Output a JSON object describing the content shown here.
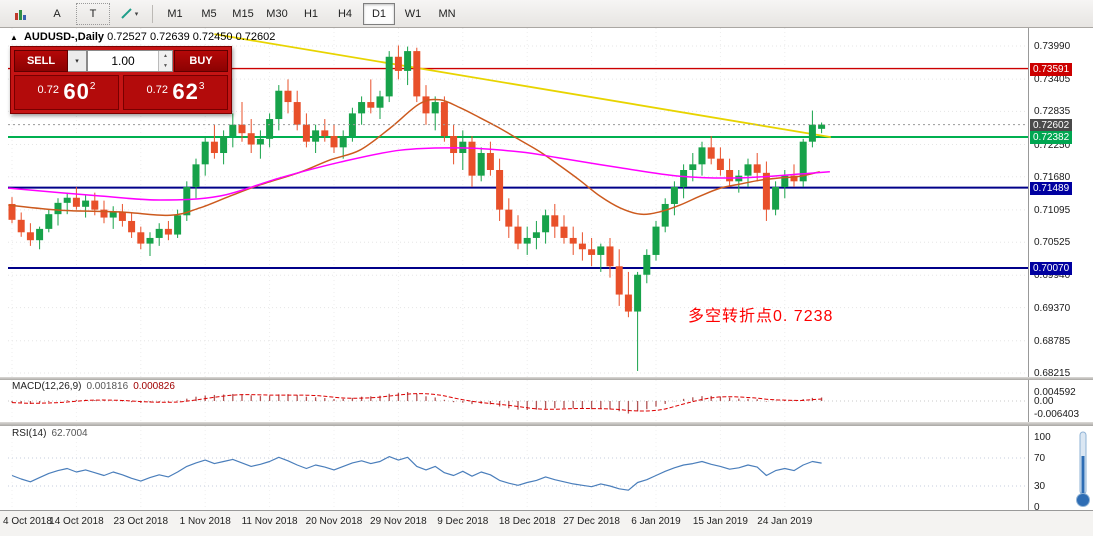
{
  "toolbar": {
    "tool_cursor": "A",
    "tool_text": "T",
    "timeframes": [
      "M1",
      "M5",
      "M15",
      "M30",
      "H1",
      "H4",
      "D1",
      "W1",
      "MN"
    ],
    "active_timeframe": "D1"
  },
  "icons": {
    "dropdown_caret": "▾",
    "spin_up": "▲",
    "spin_down": "▼",
    "chart_arrow": "▲"
  },
  "chart": {
    "title": "AUDUSD-,Daily",
    "ohlc": "0.72527 0.72639 0.72450 0.72602"
  },
  "trade_panel": {
    "sell_label": "SELL",
    "buy_label": "BUY",
    "volume": "1.00",
    "sell_price_small": "0.72",
    "sell_price_big": "60",
    "sell_price_sup": "2",
    "buy_price_small": "0.72",
    "buy_price_big": "62",
    "buy_price_sup": "3"
  },
  "annotation": {
    "text": "多空转折点0. 7238"
  },
  "price_axis": {
    "labels": [
      "0.73990",
      "0.73405",
      "0.72835",
      "0.72250",
      "0.71680",
      "0.71095",
      "0.70525",
      "0.69940",
      "0.69370",
      "0.68785",
      "0.68215"
    ],
    "tags": [
      {
        "text": "0.73591",
        "price": 0.73591,
        "color": "#cc0000"
      },
      {
        "text": "0.72602",
        "price": 0.72602,
        "color": "#4a4a4a"
      },
      {
        "text": "0.72382",
        "price": 0.72382,
        "color": "#00a651"
      },
      {
        "text": "0.71489",
        "price": 0.71489,
        "color": "#0000a0"
      },
      {
        "text": "0.70070",
        "price": 0.7007,
        "color": "#0000a0"
      }
    ]
  },
  "macd_panel": {
    "name": "MACD(12,26,9)",
    "value1": "0.001816",
    "value2": "0.000826",
    "axis": [
      "0.004592",
      "0.00",
      "-0.006403"
    ]
  },
  "rsi_panel": {
    "name": "RSI(14)",
    "value": "62.7004",
    "axis": [
      "100",
      "70",
      "30",
      "0"
    ]
  },
  "date_axis": {
    "labels": [
      "4 Oct 2018",
      "14 Oct 2018",
      "23 Oct 2018",
      "1 Nov 2018",
      "11 Nov 2018",
      "20 Nov 2018",
      "29 Nov 2018",
      "9 Dec 2018",
      "18 Dec 2018",
      "27 Dec 2018",
      "6 Jan 2019",
      "15 Jan 2019",
      "24 Jan 2019"
    ]
  },
  "chart_data": [
    {
      "type": "candlestick",
      "symbol": "AUDUSD",
      "timeframe": "Daily",
      "price_max": 0.74308,
      "price_min": 0.68144,
      "current_price": 0.72602,
      "up_color": "#17a24a",
      "down_color": "#e8502a",
      "x_tick_indices": [
        0,
        7,
        14,
        21,
        28,
        35,
        42,
        49,
        56,
        63,
        70,
        77,
        84
      ],
      "hlines": [
        {
          "price": 0.73591,
          "color": "#cc0000",
          "width": 1.4
        },
        {
          "price": 0.72382,
          "color": "#00b050",
          "width": 2
        },
        {
          "price": 0.71489,
          "color": "#000089",
          "width": 2
        },
        {
          "price": 0.7007,
          "color": "#000089",
          "width": 2
        }
      ],
      "trendline": {
        "color": "#e8d400",
        "points": [
          [
            22,
            0.742
          ],
          [
            89,
            0.7238
          ]
        ]
      },
      "ma_slow_color": "#ff00ff",
      "ma_fast_color": "#cc5a1e",
      "ma_slow": [
        [
          -0.4,
          0.7148
        ],
        [
          9.6,
          0.7134
        ],
        [
          16.1,
          0.7127
        ],
        [
          22.6,
          0.7134
        ],
        [
          29.1,
          0.7166
        ],
        [
          35.7,
          0.7194
        ],
        [
          42.2,
          0.7215
        ],
        [
          48.7,
          0.7219
        ],
        [
          55.2,
          0.7212
        ],
        [
          59.6,
          0.7201
        ],
        [
          66.1,
          0.7184
        ],
        [
          72.6,
          0.7169
        ],
        [
          79.1,
          0.7166
        ],
        [
          85.7,
          0.7173
        ],
        [
          88.9,
          0.7177
        ]
      ],
      "ma_fast": [
        [
          -0.4,
          0.7118
        ],
        [
          5.2,
          0.7109
        ],
        [
          11.7,
          0.7106
        ],
        [
          17.2,
          0.71
        ],
        [
          20.4,
          0.7113
        ],
        [
          23.7,
          0.7134
        ],
        [
          27,
          0.7154
        ],
        [
          31.3,
          0.7176
        ],
        [
          34.6,
          0.7198
        ],
        [
          37.8,
          0.7215
        ],
        [
          41.1,
          0.7254
        ],
        [
          44.3,
          0.7297
        ],
        [
          46.5,
          0.7304
        ],
        [
          48.7,
          0.729
        ],
        [
          50.9,
          0.7272
        ],
        [
          53,
          0.7254
        ],
        [
          55.2,
          0.7233
        ],
        [
          57.4,
          0.7212
        ],
        [
          59.6,
          0.7187
        ],
        [
          61.7,
          0.7162
        ],
        [
          63.9,
          0.7134
        ],
        [
          66.1,
          0.7113
        ],
        [
          68.3,
          0.7102
        ],
        [
          70.4,
          0.7106
        ],
        [
          72.6,
          0.7118
        ],
        [
          74.8,
          0.7134
        ],
        [
          77,
          0.7148
        ],
        [
          79.1,
          0.7155
        ],
        [
          81.3,
          0.7162
        ],
        [
          83.5,
          0.7166
        ],
        [
          85.7,
          0.7169
        ],
        [
          87.8,
          0.7177
        ]
      ],
      "ohlc": [
        [
          0.712,
          0.7132,
          0.7086,
          0.7092
        ],
        [
          0.7092,
          0.7105,
          0.7062,
          0.707
        ],
        [
          0.707,
          0.7086,
          0.7046,
          0.7056
        ],
        [
          0.7056,
          0.708,
          0.704,
          0.7076
        ],
        [
          0.7076,
          0.711,
          0.707,
          0.7102
        ],
        [
          0.7102,
          0.713,
          0.7082,
          0.7122
        ],
        [
          0.7122,
          0.714,
          0.7102,
          0.7131
        ],
        [
          0.7131,
          0.715,
          0.711,
          0.7115
        ],
        [
          0.7115,
          0.7136,
          0.7096,
          0.7126
        ],
        [
          0.7126,
          0.714,
          0.71,
          0.711
        ],
        [
          0.711,
          0.7126,
          0.7086,
          0.7096
        ],
        [
          0.7096,
          0.7116,
          0.7076,
          0.7106
        ],
        [
          0.7106,
          0.712,
          0.708,
          0.709
        ],
        [
          0.709,
          0.7105,
          0.706,
          0.707
        ],
        [
          0.707,
          0.708,
          0.704,
          0.705
        ],
        [
          0.705,
          0.707,
          0.7028,
          0.706
        ],
        [
          0.706,
          0.7086,
          0.7046,
          0.7076
        ],
        [
          0.7076,
          0.709,
          0.7056,
          0.7066
        ],
        [
          0.7066,
          0.711,
          0.706,
          0.71
        ],
        [
          0.71,
          0.716,
          0.709,
          0.715
        ],
        [
          0.715,
          0.72,
          0.713,
          0.719
        ],
        [
          0.719,
          0.724,
          0.717,
          0.723
        ],
        [
          0.723,
          0.726,
          0.72,
          0.721
        ],
        [
          0.721,
          0.725,
          0.719,
          0.724
        ],
        [
          0.724,
          0.728,
          0.722,
          0.726
        ],
        [
          0.726,
          0.73,
          0.723,
          0.7245
        ],
        [
          0.7245,
          0.727,
          0.721,
          0.7225
        ],
        [
          0.7225,
          0.725,
          0.72,
          0.7235
        ],
        [
          0.7235,
          0.728,
          0.722,
          0.727
        ],
        [
          0.727,
          0.733,
          0.725,
          0.732
        ],
        [
          0.732,
          0.734,
          0.728,
          0.73
        ],
        [
          0.73,
          0.732,
          0.725,
          0.726
        ],
        [
          0.726,
          0.728,
          0.722,
          0.723
        ],
        [
          0.723,
          0.726,
          0.721,
          0.725
        ],
        [
          0.725,
          0.727,
          0.723,
          0.724
        ],
        [
          0.724,
          0.726,
          0.721,
          0.722
        ],
        [
          0.722,
          0.725,
          0.72,
          0.724
        ],
        [
          0.724,
          0.729,
          0.723,
          0.728
        ],
        [
          0.728,
          0.731,
          0.726,
          0.73
        ],
        [
          0.73,
          0.734,
          0.728,
          0.729
        ],
        [
          0.729,
          0.732,
          0.727,
          0.731
        ],
        [
          0.731,
          0.739,
          0.73,
          0.738
        ],
        [
          0.738,
          0.74,
          0.734,
          0.7355
        ],
        [
          0.7355,
          0.7398,
          0.733,
          0.739
        ],
        [
          0.739,
          0.7396,
          0.73,
          0.731
        ],
        [
          0.731,
          0.733,
          0.726,
          0.728
        ],
        [
          0.728,
          0.731,
          0.725,
          0.73
        ],
        [
          0.73,
          0.731,
          0.723,
          0.724
        ],
        [
          0.724,
          0.726,
          0.719,
          0.721
        ],
        [
          0.721,
          0.725,
          0.718,
          0.723
        ],
        [
          0.723,
          0.724,
          0.715,
          0.717
        ],
        [
          0.717,
          0.722,
          0.716,
          0.721
        ],
        [
          0.721,
          0.723,
          0.717,
          0.718
        ],
        [
          0.718,
          0.72,
          0.709,
          0.711
        ],
        [
          0.711,
          0.713,
          0.706,
          0.708
        ],
        [
          0.708,
          0.71,
          0.704,
          0.705
        ],
        [
          0.705,
          0.708,
          0.703,
          0.706
        ],
        [
          0.706,
          0.709,
          0.704,
          0.707
        ],
        [
          0.707,
          0.711,
          0.705,
          0.71
        ],
        [
          0.71,
          0.712,
          0.706,
          0.708
        ],
        [
          0.708,
          0.71,
          0.705,
          0.706
        ],
        [
          0.706,
          0.708,
          0.703,
          0.705
        ],
        [
          0.705,
          0.707,
          0.702,
          0.704
        ],
        [
          0.704,
          0.706,
          0.701,
          0.703
        ],
        [
          0.703,
          0.705,
          0.7,
          0.7045
        ],
        [
          0.7045,
          0.706,
          0.699,
          0.701
        ],
        [
          0.701,
          0.704,
          0.694,
          0.696
        ],
        [
          0.696,
          0.7,
          0.692,
          0.693
        ],
        [
          0.693,
          0.7,
          0.6825,
          0.6995
        ],
        [
          0.6995,
          0.704,
          0.698,
          0.703
        ],
        [
          0.703,
          0.709,
          0.702,
          0.708
        ],
        [
          0.708,
          0.713,
          0.707,
          0.712
        ],
        [
          0.712,
          0.716,
          0.71,
          0.715
        ],
        [
          0.715,
          0.719,
          0.713,
          0.718
        ],
        [
          0.718,
          0.721,
          0.716,
          0.719
        ],
        [
          0.719,
          0.723,
          0.717,
          0.722
        ],
        [
          0.722,
          0.724,
          0.719,
          0.72
        ],
        [
          0.72,
          0.722,
          0.717,
          0.718
        ],
        [
          0.718,
          0.72,
          0.715,
          0.716
        ],
        [
          0.716,
          0.718,
          0.714,
          0.717
        ],
        [
          0.717,
          0.72,
          0.715,
          0.719
        ],
        [
          0.719,
          0.721,
          0.716,
          0.7175
        ],
        [
          0.7175,
          0.7195,
          0.709,
          0.711
        ],
        [
          0.711,
          0.716,
          0.71,
          0.715
        ],
        [
          0.715,
          0.718,
          0.713,
          0.717
        ],
        [
          0.717,
          0.719,
          0.715,
          0.716
        ],
        [
          0.716,
          0.7235,
          0.715,
          0.723
        ],
        [
          0.723,
          0.7285,
          0.722,
          0.726
        ],
        [
          0.72527,
          0.72639,
          0.7245,
          0.72602
        ]
      ]
    },
    {
      "type": "bar",
      "name": "MACD histogram",
      "bar_color": "#b05555",
      "signal_color": "#dd0000",
      "values": [
        -0.0008,
        -0.0012,
        -0.0015,
        -0.001,
        -0.0005,
        0.0,
        0.0004,
        0.0006,
        0.0007,
        0.0005,
        0.0002,
        0.0001,
        -0.0002,
        -0.0006,
        -0.001,
        -0.0008,
        -0.0005,
        -0.0004,
        0.0002,
        0.0012,
        0.0022,
        0.0028,
        0.0031,
        0.0033,
        0.0036,
        0.0034,
        0.0029,
        0.0025,
        0.0027,
        0.0034,
        0.0035,
        0.003,
        0.0022,
        0.0019,
        0.0015,
        0.001,
        0.0011,
        0.0016,
        0.0022,
        0.0024,
        0.0027,
        0.0037,
        0.0042,
        0.0046,
        0.0036,
        0.0024,
        0.0018,
        0.0006,
        -0.0006,
        -0.0009,
        -0.0016,
        -0.0014,
        -0.0017,
        -0.0028,
        -0.0037,
        -0.0044,
        -0.0046,
        -0.0044,
        -0.0039,
        -0.0037,
        -0.0036,
        -0.0038,
        -0.004,
        -0.0042,
        -0.0041,
        -0.0043,
        -0.0052,
        -0.0064,
        -0.0053,
        -0.0042,
        -0.0029,
        -0.0015,
        -0.0001,
        0.0011,
        0.0019,
        0.0025,
        0.0026,
        0.0023,
        0.0017,
        0.0012,
        0.0011,
        0.0009,
        -0.0003,
        0.0001,
        0.0005,
        0.0003,
        0.001,
        0.0016,
        0.0018
      ]
    },
    {
      "type": "line",
      "name": "RSI(14)",
      "color": "#4a7ebb",
      "levels": [
        70,
        30
      ],
      "values": [
        45,
        40,
        36,
        42,
        48,
        52,
        55,
        50,
        53,
        49,
        45,
        50,
        46,
        41,
        37,
        42,
        46,
        43,
        50,
        58,
        63,
        67,
        62,
        65,
        68,
        63,
        58,
        61,
        65,
        71,
        66,
        60,
        55,
        60,
        57,
        53,
        58,
        63,
        66,
        62,
        65,
        72,
        67,
        71,
        58,
        53,
        58,
        49,
        45,
        51,
        44,
        50,
        46,
        38,
        34,
        31,
        35,
        38,
        43,
        39,
        36,
        33,
        31,
        29,
        33,
        30,
        26,
        24,
        35,
        39,
        45,
        51,
        56,
        60,
        62,
        65,
        61,
        58,
        54,
        56,
        60,
        57,
        45,
        52,
        55,
        52,
        60,
        65,
        62.7
      ]
    }
  ]
}
